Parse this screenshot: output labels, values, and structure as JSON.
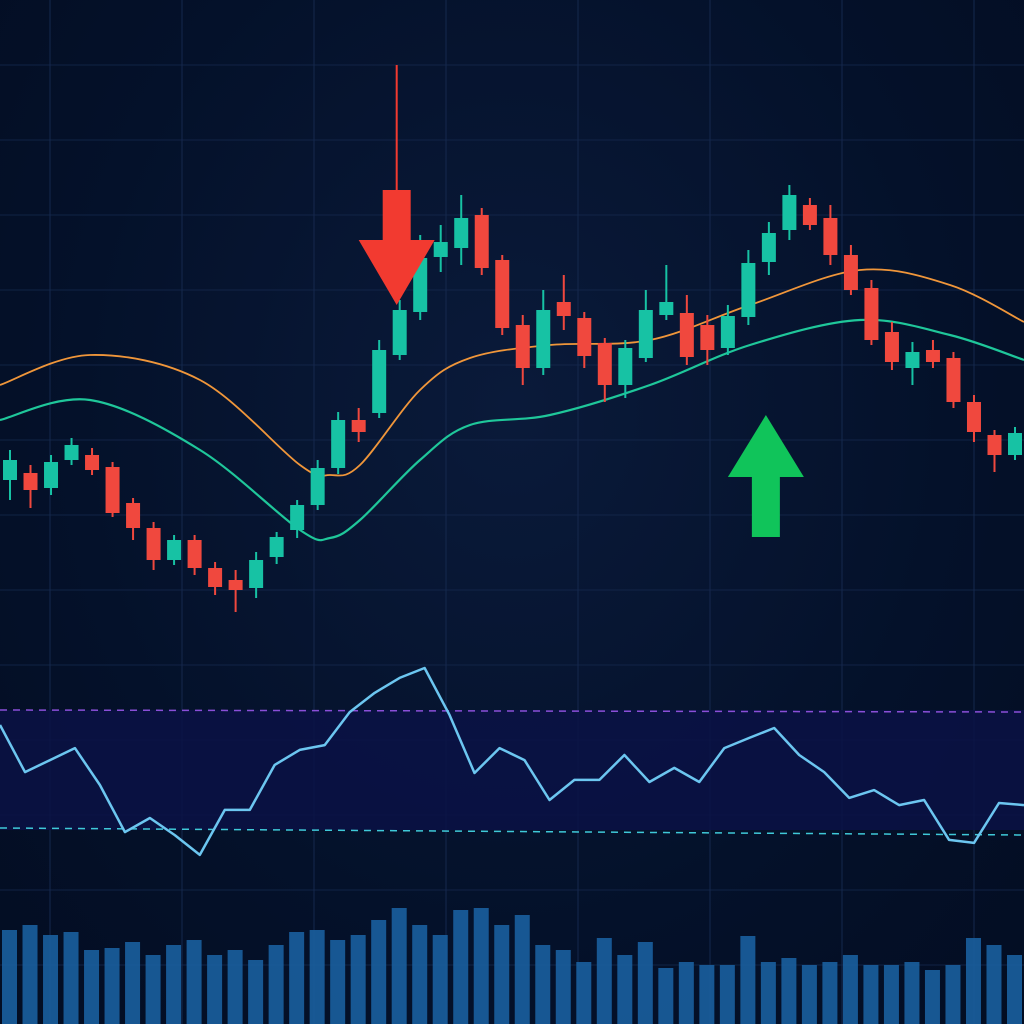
{
  "chart_data": {
    "type": "candlestick",
    "title": "",
    "xlabel": "",
    "ylabel": "",
    "grid": true,
    "colors": {
      "background": "#04112a",
      "grid": "#15284d",
      "up_candle": "#17c2a4",
      "down_candle": "#f0483e",
      "ma_fast": "#f0963a",
      "ma_slow": "#1fc79a",
      "rsi_line": "#6cc6f0",
      "rsi_band": "#0a1245",
      "overbought_line": "#8a4fd8",
      "oversold_line": "#3fc9d8",
      "volume": "#1a5f9e",
      "sell_arrow": "#f23a30",
      "buy_arrow": "#10c45a"
    },
    "candles": [
      {
        "o": 52.0,
        "c": 54.0,
        "h": 55.0,
        "l": 50.0
      },
      {
        "o": 52.7,
        "c": 51.0,
        "h": 53.5,
        "l": 49.2
      },
      {
        "o": 51.2,
        "c": 53.8,
        "h": 54.5,
        "l": 50.5
      },
      {
        "o": 54.0,
        "c": 55.5,
        "h": 56.2,
        "l": 53.5
      },
      {
        "o": 54.5,
        "c": 53.0,
        "h": 55.2,
        "l": 52.5
      },
      {
        "o": 53.3,
        "c": 48.7,
        "h": 53.8,
        "l": 48.3
      },
      {
        "o": 49.7,
        "c": 47.2,
        "h": 50.2,
        "l": 46.0
      },
      {
        "o": 47.2,
        "c": 44.0,
        "h": 47.8,
        "l": 43.0
      },
      {
        "o": 44.0,
        "c": 46.0,
        "h": 46.5,
        "l": 43.5
      },
      {
        "o": 46.0,
        "c": 43.2,
        "h": 46.5,
        "l": 42.5
      },
      {
        "o": 43.2,
        "c": 41.3,
        "h": 43.8,
        "l": 40.5
      },
      {
        "o": 42.0,
        "c": 41.0,
        "h": 43.0,
        "l": 38.8
      },
      {
        "o": 41.2,
        "c": 44.0,
        "h": 44.8,
        "l": 40.2
      },
      {
        "o": 44.3,
        "c": 46.3,
        "h": 46.8,
        "l": 43.6
      },
      {
        "o": 47.0,
        "c": 49.5,
        "h": 50.0,
        "l": 46.2
      },
      {
        "o": 49.5,
        "c": 53.2,
        "h": 54.0,
        "l": 49.0
      },
      {
        "o": 53.2,
        "c": 58.0,
        "h": 58.8,
        "l": 52.6
      },
      {
        "o": 58.0,
        "c": 56.8,
        "h": 59.2,
        "l": 55.8
      },
      {
        "o": 58.7,
        "c": 65.0,
        "h": 66.0,
        "l": 58.2
      },
      {
        "o": 64.5,
        "c": 69.0,
        "h": 70.0,
        "l": 64.0
      },
      {
        "o": 68.8,
        "c": 74.2,
        "h": 76.5,
        "l": 68.0
      },
      {
        "o": 74.3,
        "c": 75.8,
        "h": 77.5,
        "l": 72.8
      },
      {
        "o": 75.2,
        "c": 78.2,
        "h": 80.5,
        "l": 73.5
      },
      {
        "o": 78.5,
        "c": 73.2,
        "h": 79.2,
        "l": 72.5
      },
      {
        "o": 74.0,
        "c": 67.2,
        "h": 74.5,
        "l": 66.5
      },
      {
        "o": 67.5,
        "c": 63.2,
        "h": 68.5,
        "l": 61.5
      },
      {
        "o": 63.2,
        "c": 69.0,
        "h": 71.0,
        "l": 62.5
      },
      {
        "o": 69.8,
        "c": 68.4,
        "h": 72.5,
        "l": 67.0
      },
      {
        "o": 68.2,
        "c": 64.4,
        "h": 68.8,
        "l": 63.2
      },
      {
        "o": 65.7,
        "c": 61.5,
        "h": 66.2,
        "l": 59.8
      },
      {
        "o": 61.5,
        "c": 65.2,
        "h": 66.0,
        "l": 60.2
      },
      {
        "o": 64.2,
        "c": 69.0,
        "h": 71.0,
        "l": 63.8
      },
      {
        "o": 68.5,
        "c": 69.8,
        "h": 73.5,
        "l": 68.0
      },
      {
        "o": 68.7,
        "c": 64.3,
        "h": 70.5,
        "l": 63.5
      },
      {
        "o": 67.5,
        "c": 65.0,
        "h": 68.5,
        "l": 63.5
      },
      {
        "o": 65.2,
        "c": 68.4,
        "h": 69.5,
        "l": 64.5
      },
      {
        "o": 68.3,
        "c": 73.7,
        "h": 75.0,
        "l": 67.5
      },
      {
        "o": 73.8,
        "c": 76.7,
        "h": 77.8,
        "l": 72.5
      },
      {
        "o": 77.0,
        "c": 80.5,
        "h": 81.5,
        "l": 76.0
      },
      {
        "o": 79.5,
        "c": 77.5,
        "h": 80.2,
        "l": 77.0
      },
      {
        "o": 78.2,
        "c": 74.5,
        "h": 79.5,
        "l": 73.5
      },
      {
        "o": 74.5,
        "c": 71.0,
        "h": 75.5,
        "l": 70.5
      },
      {
        "o": 71.2,
        "c": 66.0,
        "h": 72.0,
        "l": 65.5
      },
      {
        "o": 66.8,
        "c": 63.8,
        "h": 67.8,
        "l": 63.0
      },
      {
        "o": 63.2,
        "c": 64.8,
        "h": 65.8,
        "l": 61.5
      },
      {
        "o": 65.0,
        "c": 63.8,
        "h": 66.0,
        "l": 63.2
      },
      {
        "o": 64.2,
        "c": 59.8,
        "h": 64.8,
        "l": 59.2
      },
      {
        "o": 59.8,
        "c": 56.8,
        "h": 60.5,
        "l": 55.8
      },
      {
        "o": 56.5,
        "c": 54.5,
        "h": 57.0,
        "l": 52.8
      },
      {
        "o": 54.5,
        "c": 56.7,
        "h": 57.3,
        "l": 54.0
      }
    ],
    "ma_fast": [
      61.5,
      64.5,
      62.0,
      53.5,
      52.5,
      53.5,
      61.0,
      64.2,
      65.5,
      66.0,
      69.5,
      73.0,
      71.5,
      67.8
    ],
    "ma_slow": [
      58.0,
      60.0,
      55.0,
      47.0,
      46.2,
      48.0,
      54.0,
      57.5,
      58.5,
      61.5,
      65.5,
      68.0,
      66.5,
      64.0
    ],
    "ma_x": [
      0,
      90,
      200,
      300,
      330,
      360,
      420,
      470,
      550,
      650,
      750,
      860,
      950,
      1024
    ],
    "rsi": {
      "overbought": 70,
      "oversold": 30,
      "values": [
        65,
        49.3,
        53.3,
        57.3,
        45,
        29.3,
        34,
        28.3,
        21.7,
        36.7,
        36.7,
        51.7,
        56.7,
        58.3,
        69.3,
        75.7,
        80.7,
        84,
        68.3,
        49,
        57.3,
        53.3,
        40,
        46.7,
        46.7,
        55,
        46,
        50.7,
        46,
        57.3,
        60.7,
        64,
        55,
        49.3,
        40.7,
        43.3,
        38.3,
        40,
        26.7,
        25.7,
        39,
        38.3
      ]
    },
    "volume": [
      70,
      75,
      65,
      68,
      50,
      52,
      58,
      45,
      55,
      60,
      45,
      50,
      40,
      55,
      68,
      70,
      60,
      65,
      80,
      92,
      75,
      65,
      90,
      92,
      75,
      85,
      55,
      50,
      38,
      62,
      45,
      58,
      32,
      38,
      35,
      35,
      64,
      38,
      42,
      35,
      38,
      45,
      35,
      35,
      38,
      30,
      35,
      62,
      55,
      45
    ],
    "signals": [
      {
        "type": "sell",
        "candle_index": 19
      },
      {
        "type": "buy",
        "candle_index": 37
      }
    ]
  }
}
